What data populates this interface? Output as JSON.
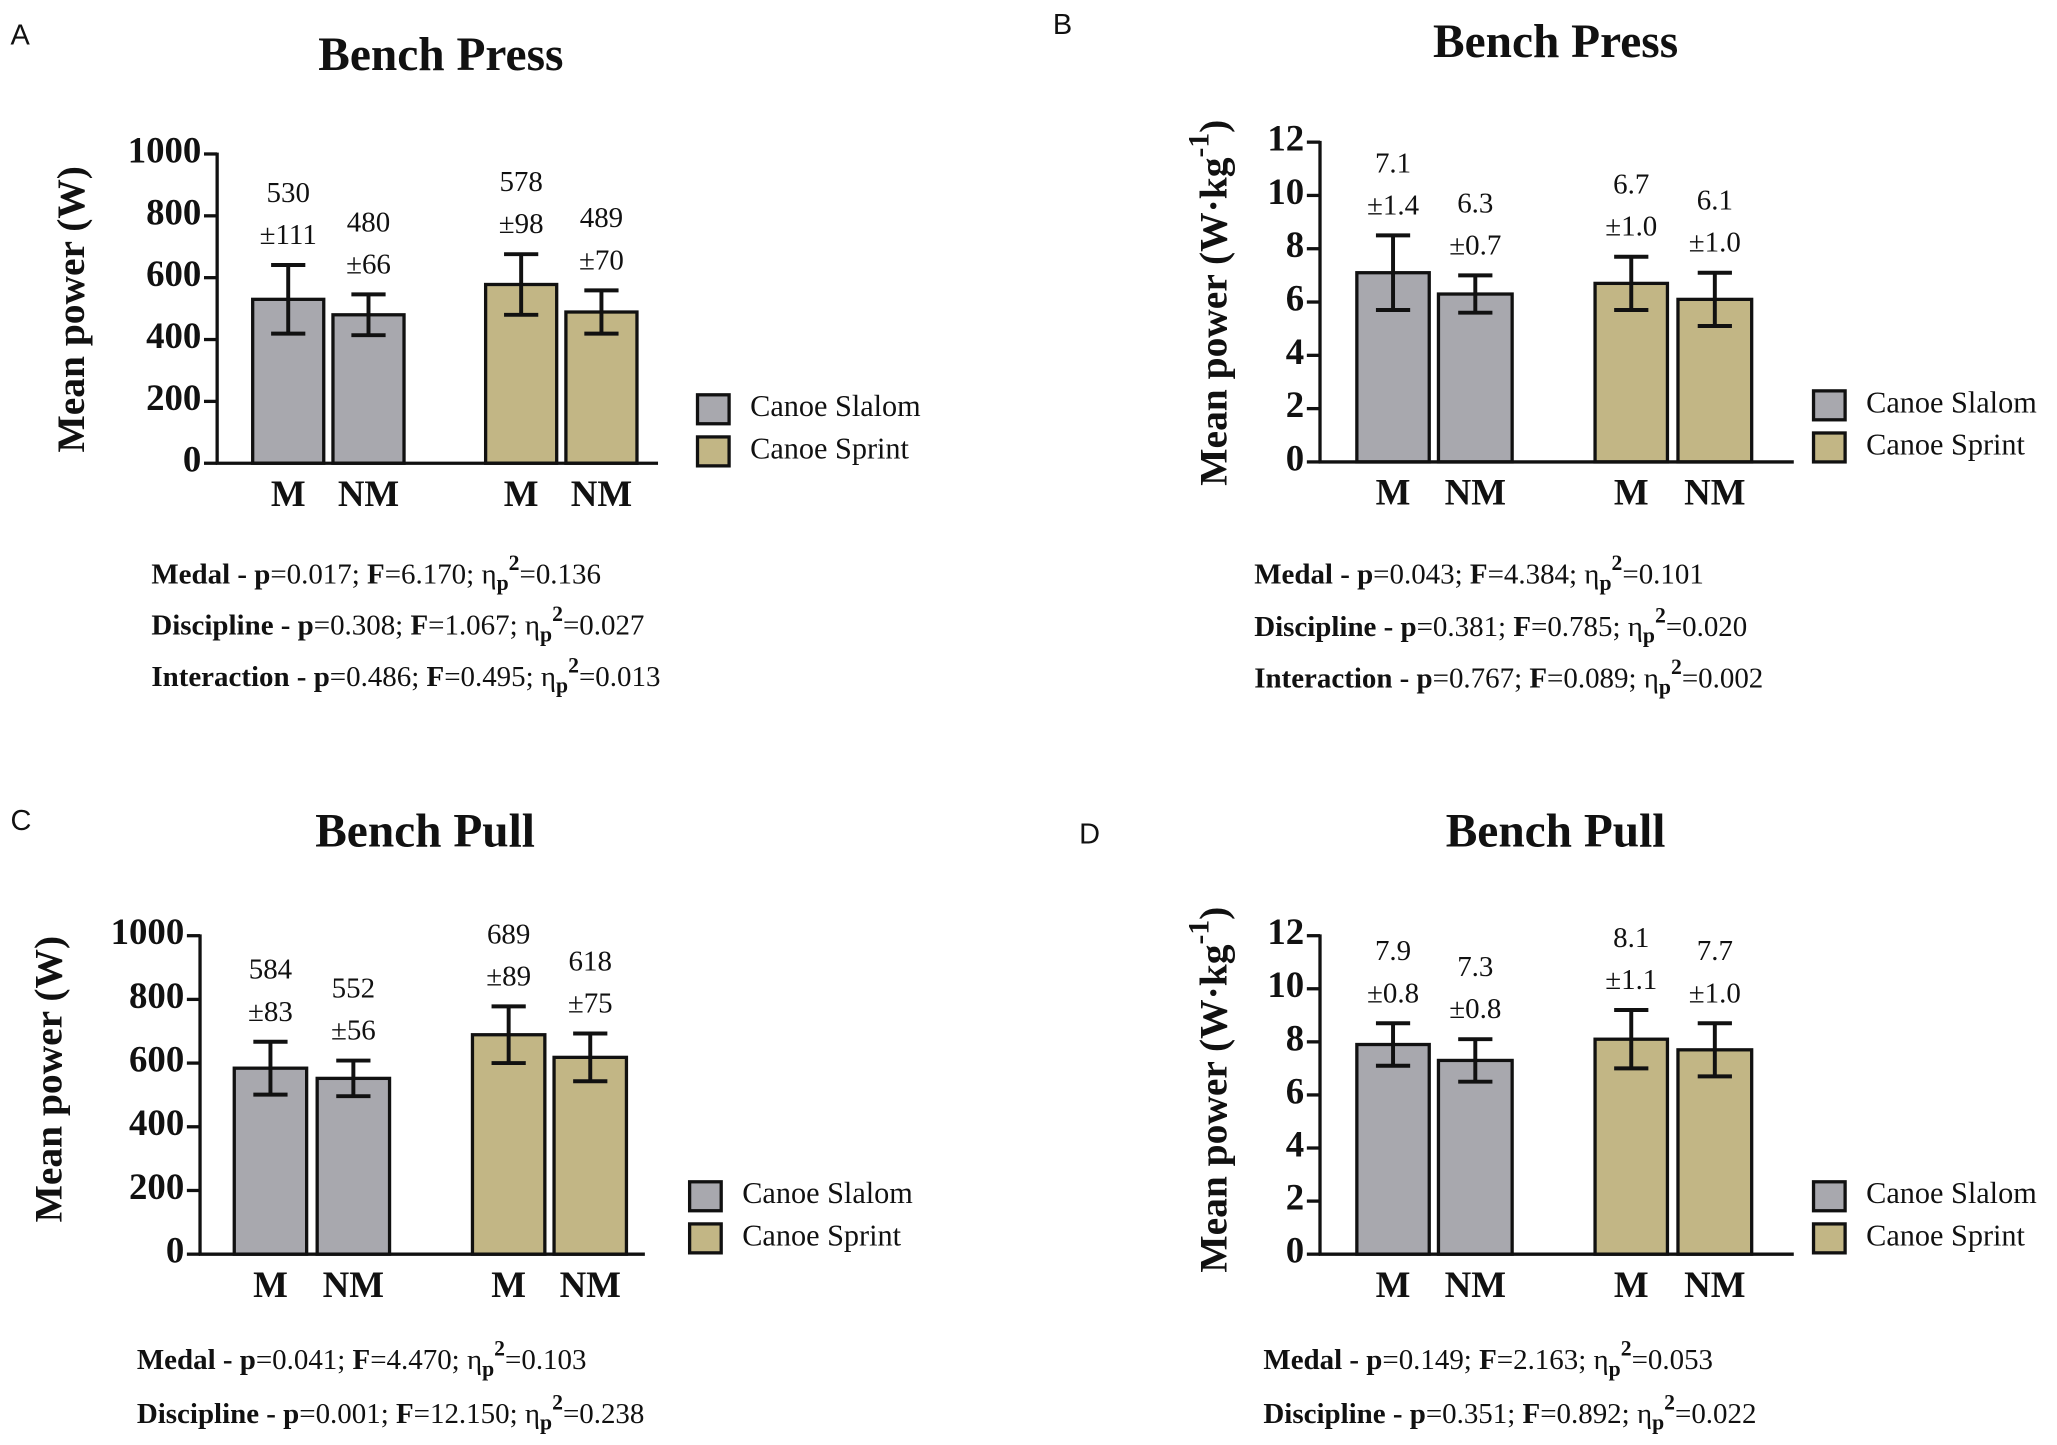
{
  "chart_data": [
    {
      "type": "bar",
      "panel": "A",
      "title": "Bench Press",
      "ylabel": [
        {
          "text": "Mean power (W)"
        }
      ],
      "categories": [
        "M",
        "NM"
      ],
      "series": [
        {
          "name": "Canoe Slalom",
          "color": "#a8a8ae",
          "values": [
            530,
            480
          ],
          "errors": [
            111,
            66
          ],
          "error_labels": [
            "±111",
            "±66"
          ]
        },
        {
          "name": "Canoe Sprint",
          "color": "#c2b685",
          "values": [
            578,
            489
          ],
          "errors": [
            98,
            70
          ],
          "error_labels": [
            "±98",
            "±70"
          ]
        }
      ],
      "ylim": [
        0,
        1000
      ],
      "yticks": [
        0,
        200,
        400,
        600,
        800,
        1000
      ],
      "stats": [
        [
          {
            "text": "Medal - ",
            "bold": true
          },
          {
            "text": "p",
            "bold": true
          },
          {
            "text": "=0.017; "
          },
          {
            "text": "F",
            "bold": true
          },
          {
            "text": "=6.170; "
          },
          {
            "text": "η"
          },
          {
            "text": "p",
            "bold": true,
            "style": "sub"
          },
          {
            "text": "2",
            "bold": true,
            "style": "sup"
          },
          {
            "text": "=0.136"
          }
        ],
        [
          {
            "text": "Discipline - ",
            "bold": true
          },
          {
            "text": "p",
            "bold": true
          },
          {
            "text": "=0.308; "
          },
          {
            "text": "F",
            "bold": true
          },
          {
            "text": "=1.067; "
          },
          {
            "text": "η"
          },
          {
            "text": "p",
            "bold": true,
            "style": "sub"
          },
          {
            "text": "2",
            "bold": true,
            "style": "sup"
          },
          {
            "text": "=0.027"
          }
        ],
        [
          {
            "text": "Interaction - ",
            "bold": true
          },
          {
            "text": "p",
            "bold": true
          },
          {
            "text": "=0.486; "
          },
          {
            "text": "F",
            "bold": true
          },
          {
            "text": "=0.495; "
          },
          {
            "text": "η"
          },
          {
            "text": "p",
            "bold": true,
            "style": "sub"
          },
          {
            "text": "2",
            "bold": true,
            "style": "sup"
          },
          {
            "text": "=0.013"
          }
        ]
      ]
    },
    {
      "type": "bar",
      "panel": "B",
      "title": "Bench Press",
      "ylabel": [
        {
          "text": "Mean power (W·kg"
        },
        {
          "text": "-1",
          "style": "sup"
        },
        {
          "text": ")"
        }
      ],
      "categories": [
        "M",
        "NM"
      ],
      "series": [
        {
          "name": "Canoe Slalom",
          "color": "#a8a8ae",
          "values": [
            7.1,
            6.3
          ],
          "errors": [
            1.4,
            0.7
          ],
          "error_labels": [
            "±1.4",
            "±0.7"
          ]
        },
        {
          "name": "Canoe Sprint",
          "color": "#c2b685",
          "values": [
            6.7,
            6.1
          ],
          "errors": [
            1.0,
            1.0
          ],
          "error_labels": [
            "±1.0",
            "±1.0"
          ]
        }
      ],
      "ylim": [
        0,
        12
      ],
      "yticks": [
        0,
        2,
        4,
        6,
        8,
        10,
        12
      ],
      "stats": [
        [
          {
            "text": "Medal - ",
            "bold": true
          },
          {
            "text": "p",
            "bold": true
          },
          {
            "text": "=0.043; "
          },
          {
            "text": "F",
            "bold": true
          },
          {
            "text": "=4.384; "
          },
          {
            "text": "η"
          },
          {
            "text": "p",
            "bold": true,
            "style": "sub"
          },
          {
            "text": "2",
            "bold": true,
            "style": "sup"
          },
          {
            "text": "=0.101"
          }
        ],
        [
          {
            "text": "Discipline - ",
            "bold": true
          },
          {
            "text": "p",
            "bold": true
          },
          {
            "text": "=0.381; "
          },
          {
            "text": "F",
            "bold": true
          },
          {
            "text": "=0.785; "
          },
          {
            "text": "η"
          },
          {
            "text": "p",
            "bold": true,
            "style": "sub"
          },
          {
            "text": "2",
            "bold": true,
            "style": "sup"
          },
          {
            "text": "=0.020"
          }
        ],
        [
          {
            "text": "Interaction - ",
            "bold": true
          },
          {
            "text": "p",
            "bold": true
          },
          {
            "text": "=0.767; "
          },
          {
            "text": "F",
            "bold": true
          },
          {
            "text": "=0.089; "
          },
          {
            "text": "η"
          },
          {
            "text": "p",
            "bold": true,
            "style": "sub"
          },
          {
            "text": "2",
            "bold": true,
            "style": "sup"
          },
          {
            "text": "=0.002"
          }
        ]
      ]
    },
    {
      "type": "bar",
      "panel": "C",
      "title": "Bench Pull",
      "ylabel": [
        {
          "text": "Mean power (W)"
        }
      ],
      "categories": [
        "M",
        "NM"
      ],
      "series": [
        {
          "name": "Canoe Slalom",
          "color": "#a8a8ae",
          "values": [
            584,
            552
          ],
          "errors": [
            83,
            56
          ],
          "error_labels": [
            "±83",
            "±56"
          ]
        },
        {
          "name": "Canoe Sprint",
          "color": "#c2b685",
          "values": [
            689,
            618
          ],
          "errors": [
            89,
            75
          ],
          "error_labels": [
            "±89",
            "±75"
          ]
        }
      ],
      "ylim": [
        0,
        1000
      ],
      "yticks": [
        0,
        200,
        400,
        600,
        800,
        1000
      ],
      "stats": [
        [
          {
            "text": "Medal - ",
            "bold": true
          },
          {
            "text": "p",
            "bold": true
          },
          {
            "text": "=0.041; "
          },
          {
            "text": "F",
            "bold": true
          },
          {
            "text": "=4.470; "
          },
          {
            "text": "η"
          },
          {
            "text": "p",
            "bold": true,
            "style": "sub"
          },
          {
            "text": "2",
            "bold": true,
            "style": "sup"
          },
          {
            "text": "=0.103"
          }
        ],
        [
          {
            "text": "Discipline - ",
            "bold": true
          },
          {
            "text": "p",
            "bold": true
          },
          {
            "text": "=0.001; "
          },
          {
            "text": "F",
            "bold": true
          },
          {
            "text": "=12.150; "
          },
          {
            "text": "η"
          },
          {
            "text": "p",
            "bold": true,
            "style": "sub"
          },
          {
            "text": "2",
            "bold": true,
            "style": "sup"
          },
          {
            "text": "=0.238"
          }
        ]
      ]
    },
    {
      "type": "bar",
      "panel": "D",
      "title": "Bench Pull",
      "ylabel": [
        {
          "text": "Mean power (W·kg"
        },
        {
          "text": "-1",
          "style": "sup"
        },
        {
          "text": ")"
        }
      ],
      "categories": [
        "M",
        "NM"
      ],
      "series": [
        {
          "name": "Canoe Slalom",
          "color": "#a8a8ae",
          "values": [
            7.9,
            7.3
          ],
          "errors": [
            0.8,
            0.8
          ],
          "error_labels": [
            "±0.8",
            "±0.8"
          ]
        },
        {
          "name": "Canoe Sprint",
          "color": "#c2b685",
          "values": [
            8.1,
            7.7
          ],
          "errors": [
            1.1,
            1.0
          ],
          "error_labels": [
            "±1.1",
            "±1.0"
          ]
        }
      ],
      "ylim": [
        0,
        12
      ],
      "yticks": [
        0,
        2,
        4,
        6,
        8,
        10,
        12
      ],
      "stats": [
        [
          {
            "text": "Medal - ",
            "bold": true
          },
          {
            "text": "p",
            "bold": true
          },
          {
            "text": "=0.149; "
          },
          {
            "text": "F",
            "bold": true
          },
          {
            "text": "=2.163; "
          },
          {
            "text": "η"
          },
          {
            "text": "p",
            "bold": true,
            "style": "sub"
          },
          {
            "text": "2",
            "bold": true,
            "style": "sup"
          },
          {
            "text": "=0.053"
          }
        ],
        [
          {
            "text": "Discipline - ",
            "bold": true
          },
          {
            "text": "p",
            "bold": true
          },
          {
            "text": "=0.351; "
          },
          {
            "text": "F",
            "bold": true
          },
          {
            "text": "=0.892; "
          },
          {
            "text": "η"
          },
          {
            "text": "p",
            "bold": true,
            "style": "sub"
          },
          {
            "text": "2",
            "bold": true,
            "style": "sup"
          },
          {
            "text": "=0.022"
          }
        ]
      ]
    }
  ]
}
